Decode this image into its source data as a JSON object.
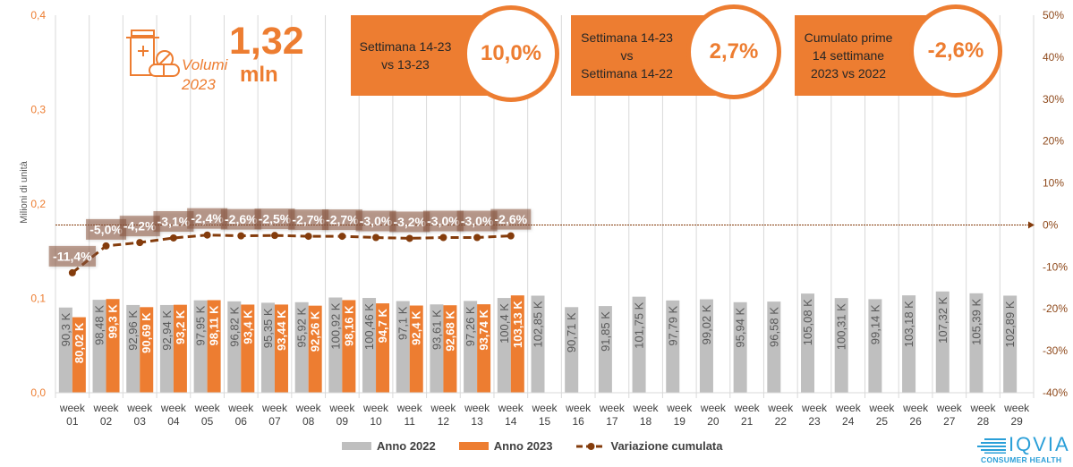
{
  "header": {
    "value": "1,32",
    "unit": "mln",
    "label_line1": "Volumi",
    "label_line2": "2023",
    "icon": "medicine-bottle-pills-icon",
    "color": "#ed7d31"
  },
  "kpis": [
    {
      "lines": [
        "Settimana 14-23",
        "vs 13-23"
      ],
      "value": "10,0%"
    },
    {
      "lines": [
        "Settimana 14-23",
        "vs",
        "Settimana 14-22"
      ],
      "value": "2,7%"
    },
    {
      "lines": [
        "Cumulato prime",
        "14 settimane",
        "2023 vs 2022"
      ],
      "value": "-2,6%"
    }
  ],
  "legend": [
    {
      "label": "Anno 2022",
      "color": "#bfbfbf",
      "symbol": "bar"
    },
    {
      "label": "Anno 2023",
      "color": "#ed7d31",
      "symbol": "bar"
    },
    {
      "label": "Variazione cumulata",
      "color": "#843c0c",
      "symbol": "dashed-line-with-marker"
    }
  ],
  "logo": {
    "brand": "IQVIA",
    "subtitle": "CONSUMER HEALTH",
    "color": "#2a9fd8"
  },
  "chart_data": {
    "type": "bar",
    "title": "",
    "xlabel": "",
    "ylabel": "Milioni di unità",
    "legend_position": "bottom",
    "grid": {
      "vertical": true,
      "horizontal": false
    },
    "categories": [
      "week 01",
      "week 02",
      "week 03",
      "week 04",
      "week 05",
      "week 06",
      "week 07",
      "week 08",
      "week 09",
      "week 10",
      "week 11",
      "week 12",
      "week 13",
      "week 14",
      "week 15",
      "week 16",
      "week 17",
      "week 18",
      "week 19",
      "week 20",
      "week 21",
      "week 22",
      "week 23",
      "week 24",
      "week 25",
      "week 26",
      "week 27",
      "week 28",
      "week 29"
    ],
    "y_left": {
      "range": [
        0,
        0.4
      ],
      "unit": "millions",
      "ticks": [
        "0,0",
        "0,1",
        "0,2",
        "0,3",
        "0,4"
      ],
      "color": "#ed7d31"
    },
    "y_right": {
      "range": [
        -40,
        50
      ],
      "unit": "%",
      "ticks": [
        "-40%",
        "-30%",
        "-20%",
        "-10%",
        "0%",
        "10%",
        "20%",
        "30%",
        "40%",
        "50%"
      ],
      "color": "#8f4a1c"
    },
    "reference_line": {
      "axis": "right",
      "value": 0,
      "color": "#843c0c"
    },
    "series": [
      {
        "name": "Anno 2022",
        "type": "bar",
        "axis": "left",
        "unit": "K",
        "color": "#bfbfbf",
        "values": [
          90.3,
          98.48,
          92.96,
          92.94,
          97.95,
          96.82,
          95.35,
          95.92,
          100.92,
          100.46,
          97.1,
          93.61,
          97.26,
          100.4,
          102.85,
          90.71,
          91.85,
          101.75,
          97.79,
          99.02,
          95.94,
          96.58,
          105.08,
          100.31,
          99.14,
          103.18,
          107.32,
          105.39,
          102.89
        ],
        "data_labels": [
          "90,3 K",
          "98,48 K",
          "92,96 K",
          "92,94 K",
          "97,95 K",
          "96,82 K",
          "95,35 K",
          "95,92 K",
          "100,92 K",
          "100,46 K",
          "97,1 K",
          "93,61 K",
          "97,26 K",
          "100,4 K",
          "102,85 K",
          "90,71 K",
          "91,85 K",
          "101,75 K",
          "97,79 K",
          "99,02 K",
          "95,94 K",
          "96,58 K",
          "105,08 K",
          "100,31 K",
          "99,14 K",
          "103,18 K",
          "107,32 K",
          "105,39 K",
          "102,89 K"
        ]
      },
      {
        "name": "Anno 2023",
        "type": "bar",
        "axis": "left",
        "unit": "K",
        "color": "#ed7d31",
        "values": [
          80.02,
          99.3,
          90.69,
          93.2,
          98.11,
          93.4,
          93.44,
          92.26,
          98.16,
          94.7,
          92.4,
          92.68,
          93.74,
          103.13
        ],
        "data_labels": [
          "80,02 K",
          "99,3 K",
          "90,69 K",
          "93,2 K",
          "98,11 K",
          "93,4 K",
          "93,44 K",
          "92,26 K",
          "98,16 K",
          "94,7 K",
          "92,4 K",
          "92,68 K",
          "93,74 K",
          "103,13 K"
        ]
      },
      {
        "name": "Variazione cumulata",
        "type": "line",
        "axis": "right",
        "unit": "%",
        "color": "#843c0c",
        "values": [
          -11.4,
          -5.0,
          -4.2,
          -3.1,
          -2.4,
          -2.6,
          -2.5,
          -2.7,
          -2.7,
          -3.0,
          -3.2,
          -3.0,
          -3.0,
          -2.6
        ],
        "data_labels": [
          "-11,4%",
          "-5,0%",
          "-4,2%",
          "-3,1%",
          "-2,4%",
          "-2,6%",
          "-2,5%",
          "-2,7%",
          "-2,7%",
          "-3,0%",
          "-3,2%",
          "-3,0%",
          "-3,0%",
          "-2,6%"
        ]
      }
    ]
  }
}
